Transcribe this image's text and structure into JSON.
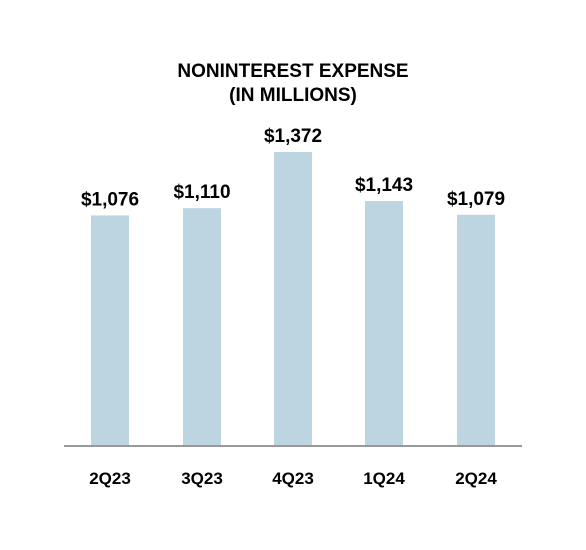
{
  "chart_data": {
    "type": "bar",
    "title": [
      "NONINTEREST EXPENSE",
      "(IN MILLIONS)"
    ],
    "categories": [
      "2Q23",
      "3Q23",
      "4Q23",
      "1Q24",
      "2Q24"
    ],
    "values": [
      1076,
      1110,
      1372,
      1143,
      1079
    ],
    "value_labels": [
      "$1,076",
      "$1,110",
      "$1,372",
      "$1,143",
      "$1,079"
    ],
    "grid": false,
    "legend": "none",
    "colors": {
      "bar": "#bcd5e0",
      "axis": "#999999",
      "text": "#000000"
    }
  }
}
